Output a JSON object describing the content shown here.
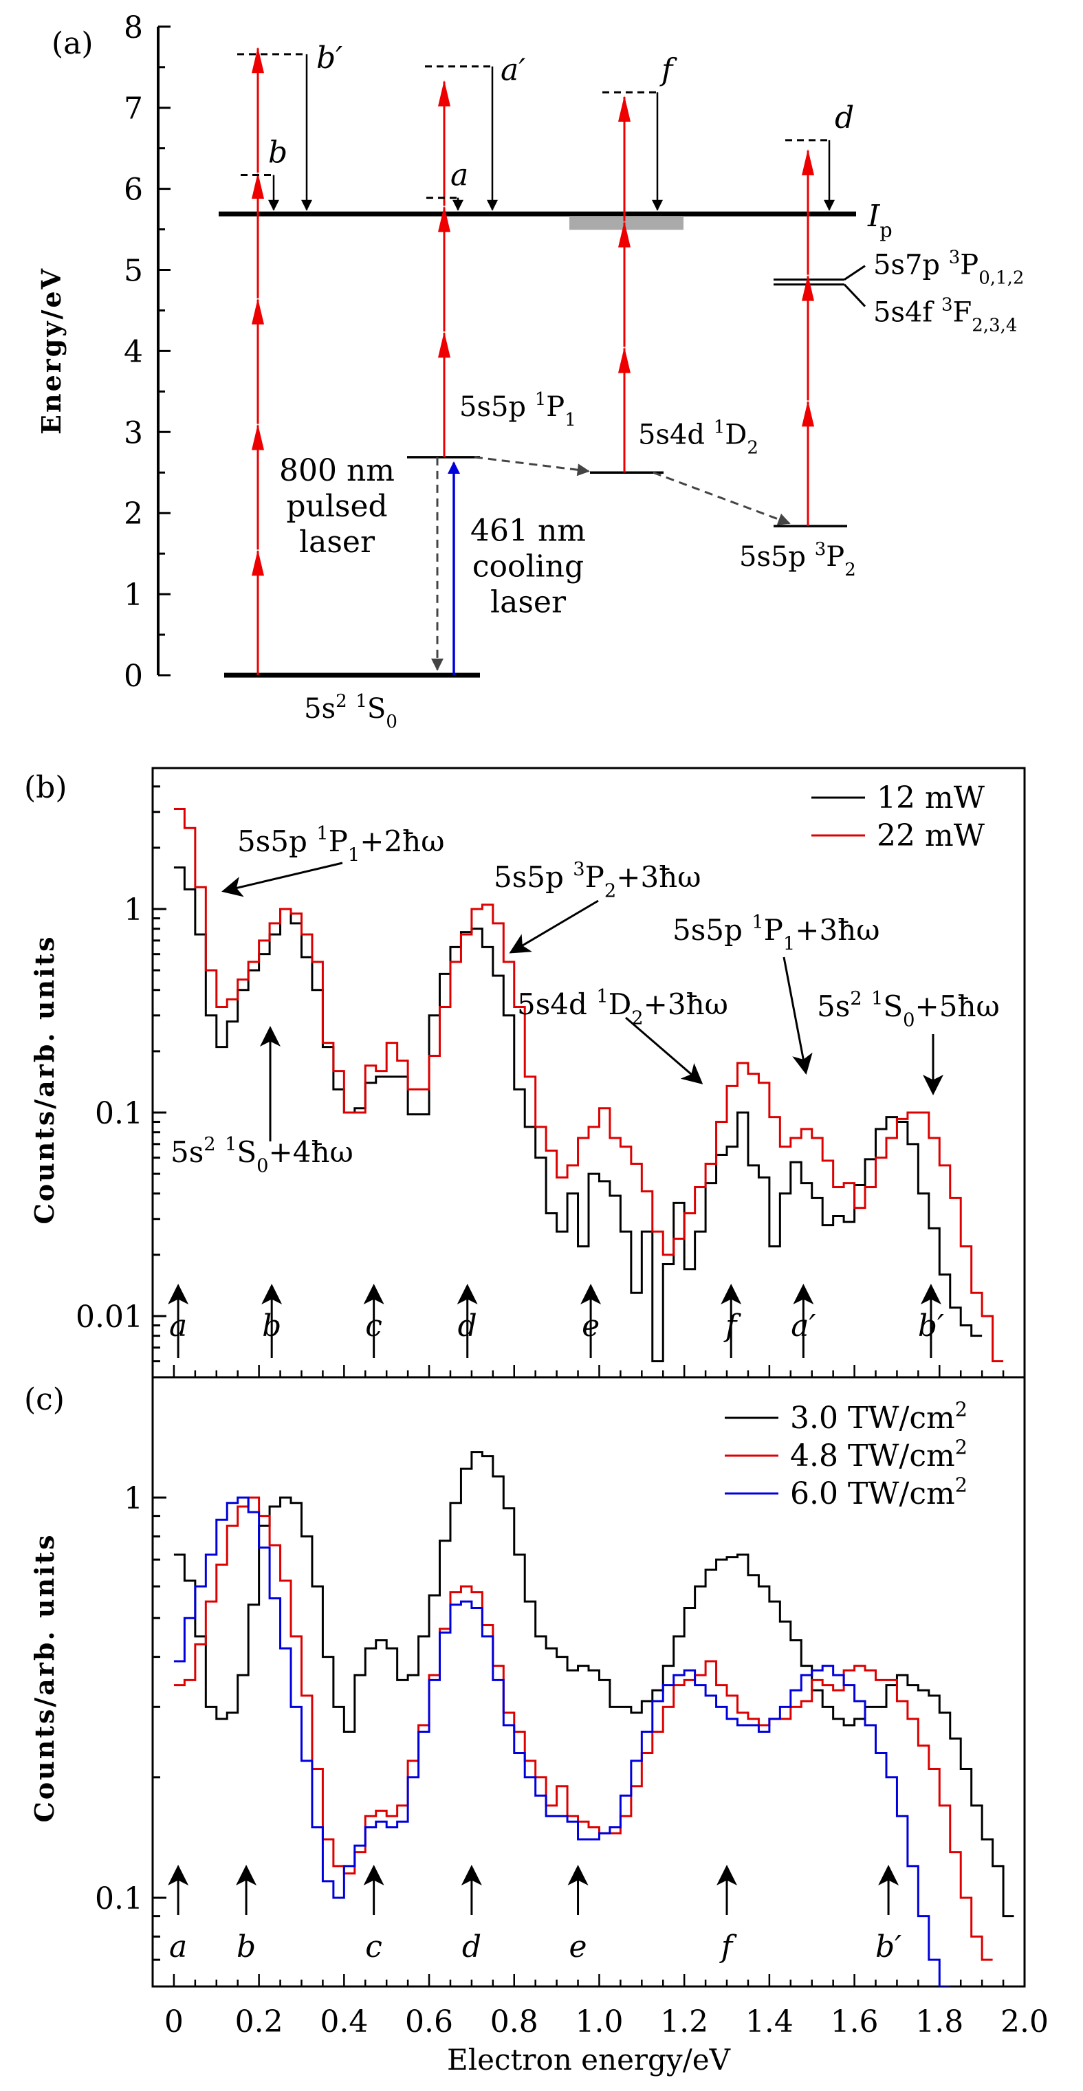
{
  "chart_data": [
    {
      "panel": "(a)",
      "type": "diagram",
      "title": "Energy level scheme",
      "ylabel": "Energy/eV",
      "ylim": [
        0,
        8
      ],
      "yticks": [
        "0",
        "1",
        "2",
        "3",
        "4",
        "5",
        "6",
        "7",
        "8"
      ],
      "ionization_label": "I",
      "ionization_sub": "p",
      "ionization_energy": 5.69,
      "levels": [
        {
          "name": "5s² ¹S₀",
          "label": "5s",
          "sup1": "2",
          "term": "1",
          "L": "S",
          "sub": "0",
          "energy": 0.0
        },
        {
          "name": "5s5p ¹P₁",
          "label": "5s5p",
          "term": "1",
          "L": "P",
          "sub": "1",
          "energy": 2.69
        },
        {
          "name": "5s4d ¹D₂",
          "label": "5s4d",
          "term": "1",
          "L": "D",
          "sub": "2",
          "energy": 2.5
        },
        {
          "name": "5s5p ³P₂",
          "label": "5s5p",
          "term": "3",
          "L": "P",
          "sub": "2",
          "energy": 1.84
        },
        {
          "name": "5s7p ³P₀,₁,₂",
          "label": "5s7p",
          "term": "3",
          "L": "P",
          "sub": "0,1,2",
          "energy": 4.88
        },
        {
          "name": "5s4f ³F₂,₃,₄",
          "label": "5s4f",
          "term": "3",
          "L": "F",
          "sub": "2,3,4",
          "energy": 4.82
        }
      ],
      "photon_energy_eV": 1.55,
      "virtual_levels": [
        {
          "label": "b'",
          "energy": 7.66
        },
        {
          "label": "b",
          "energy": 6.17
        },
        {
          "label": "a'",
          "energy": 7.51
        },
        {
          "label": "a",
          "energy": 5.89
        },
        {
          "label": "f",
          "energy": 7.19
        },
        {
          "label": "d",
          "energy": 6.6
        }
      ],
      "lasers": {
        "pulsed": [
          "800 nm",
          "pulsed",
          "laser"
        ],
        "cooling": [
          "461 nm",
          "cooling",
          "laser"
        ]
      },
      "colors": {
        "photon": "#ee0000",
        "cooling": "#0000dd",
        "decay": "#444444",
        "band": "#aaaaaa"
      }
    },
    {
      "panel": "(b)",
      "type": "line",
      "style": "step histogram",
      "ylabel": "Counts/arb. units",
      "yscale": "log",
      "ylim": [
        0.0055,
        4.5
      ],
      "yticks": [
        "0.01",
        "0.1",
        "1"
      ],
      "xlim": [
        -0.05,
        2.0
      ],
      "legend": "top-right",
      "bin_width": 0.025,
      "x_start": 0.0,
      "series": [
        {
          "name": "12 mW",
          "color": "#000000",
          "values": [
            1.6,
            1.25,
            0.75,
            0.3,
            0.21,
            0.28,
            0.4,
            0.5,
            0.6,
            0.75,
            1.0,
            0.85,
            0.58,
            0.4,
            0.21,
            0.13,
            0.1,
            0.105,
            0.14,
            0.15,
            0.15,
            0.15,
            0.098,
            0.098,
            0.3,
            0.48,
            0.65,
            0.77,
            0.8,
            0.65,
            0.47,
            0.3,
            0.13,
            0.085,
            0.06,
            0.032,
            0.026,
            0.04,
            0.022,
            0.05,
            0.046,
            0.039,
            0.026,
            0.013,
            0.026,
            0.006,
            0.018,
            0.036,
            0.017,
            0.026,
            0.045,
            0.062,
            0.068,
            0.1,
            0.055,
            0.048,
            0.022,
            0.04,
            0.057,
            0.045,
            0.038,
            0.028,
            0.031,
            0.029,
            0.044,
            0.059,
            0.083,
            0.095,
            0.09,
            0.07,
            0.04,
            0.027,
            0.016,
            0.011,
            0.009,
            0.008
          ]
        },
        {
          "name": "22 mW",
          "color": "#dd0000",
          "values": [
            3.1,
            2.5,
            1.28,
            0.5,
            0.33,
            0.36,
            0.45,
            0.55,
            0.7,
            0.85,
            1.0,
            0.95,
            0.75,
            0.55,
            0.22,
            0.16,
            0.1,
            0.1,
            0.17,
            0.16,
            0.22,
            0.18,
            0.13,
            0.13,
            0.19,
            0.33,
            0.55,
            0.75,
            1.0,
            1.05,
            0.85,
            0.55,
            0.33,
            0.15,
            0.085,
            0.065,
            0.048,
            0.055,
            0.075,
            0.085,
            0.105,
            0.075,
            0.068,
            0.056,
            0.041,
            0.026,
            0.02,
            0.024,
            0.032,
            0.043,
            0.056,
            0.09,
            0.135,
            0.175,
            0.155,
            0.14,
            0.095,
            0.068,
            0.075,
            0.083,
            0.075,
            0.058,
            0.043,
            0.045,
            0.034,
            0.043,
            0.06,
            0.075,
            0.093,
            0.1,
            0.1,
            0.075,
            0.055,
            0.038,
            0.022,
            0.013,
            0.01,
            0.006
          ]
        }
      ],
      "annotations": [
        {
          "text": "5s5p ¹P₁+2ħω",
          "base": "5s5p ",
          "sup": "1",
          "L": "P",
          "sub": "1",
          "tail": "+2ħω"
        },
        {
          "text": "5s5p ³P₂+3ħω",
          "base": "5s5p ",
          "sup": "3",
          "L": "P",
          "sub": "2",
          "tail": "+3ħω"
        },
        {
          "text": "5s2 ¹S₀+4ħω",
          "base": "5s",
          "sup0": "2",
          "sup": "1",
          "L": "S",
          "sub": "0",
          "tail": "+4ħω"
        },
        {
          "text": "5s4d ¹D₂+3ħω",
          "base": "5s4d ",
          "sup": "1",
          "L": "D",
          "sub": "2",
          "tail": "+3ħω"
        },
        {
          "text": "5s5p ¹P₁+3ħω",
          "base": "5s5p ",
          "sup": "1",
          "L": "P",
          "sub": "1",
          "tail": "+3ħω"
        },
        {
          "text": "5s2 ¹S₀+5ħω",
          "base": "5s",
          "sup0": "2",
          "sup": "1",
          "L": "S",
          "sub": "0",
          "tail": "+5ħω"
        }
      ],
      "peak_markers": [
        {
          "label": "a",
          "x": 0.01
        },
        {
          "label": "b",
          "x": 0.23
        },
        {
          "label": "c",
          "x": 0.47
        },
        {
          "label": "d",
          "x": 0.69
        },
        {
          "label": "e",
          "x": 0.98
        },
        {
          "label": "f",
          "x": 1.31
        },
        {
          "label": "a'",
          "x": 1.48
        },
        {
          "label": "b'",
          "x": 1.78
        }
      ]
    },
    {
      "panel": "(c)",
      "type": "line",
      "style": "step histogram",
      "ylabel": "Counts/arb. units",
      "xlabel": "Electron energy/eV",
      "yscale": "log",
      "ylim": [
        0.065,
        1.65
      ],
      "yticks": [
        "0.1",
        "1"
      ],
      "xlim": [
        -0.05,
        2.0
      ],
      "xticks": [
        "0",
        "0.2",
        "0.4",
        "0.6",
        "0.8",
        "1.0",
        "1.2",
        "1.4",
        "1.6",
        "1.8",
        "2.0"
      ],
      "legend": "top-right",
      "bin_width": 0.025,
      "x_start": 0.0,
      "series": [
        {
          "name": "3.0 TW/cm²",
          "label": "3.0 TW/cm",
          "sup": "2",
          "color": "#000000",
          "values": [
            0.72,
            0.62,
            0.45,
            0.3,
            0.28,
            0.29,
            0.36,
            0.54,
            0.85,
            0.95,
            1.0,
            0.97,
            0.8,
            0.6,
            0.4,
            0.3,
            0.26,
            0.36,
            0.42,
            0.44,
            0.42,
            0.35,
            0.36,
            0.45,
            0.57,
            0.78,
            0.97,
            1.18,
            1.3,
            1.27,
            1.13,
            0.94,
            0.72,
            0.55,
            0.45,
            0.42,
            0.4,
            0.37,
            0.38,
            0.37,
            0.35,
            0.3,
            0.3,
            0.29,
            0.31,
            0.33,
            0.38,
            0.45,
            0.53,
            0.6,
            0.66,
            0.7,
            0.71,
            0.72,
            0.64,
            0.6,
            0.55,
            0.49,
            0.44,
            0.38,
            0.33,
            0.3,
            0.28,
            0.27,
            0.28,
            0.3,
            0.3,
            0.34,
            0.36,
            0.34,
            0.33,
            0.32,
            0.29,
            0.25,
            0.21,
            0.17,
            0.14,
            0.12,
            0.09
          ]
        },
        {
          "name": "4.8 TW/cm²",
          "label": "4.8 TW/cm",
          "sup": "2",
          "color": "#dd0000",
          "values": [
            0.34,
            0.35,
            0.43,
            0.55,
            0.68,
            0.85,
            0.95,
            1.0,
            0.9,
            0.76,
            0.62,
            0.45,
            0.32,
            0.21,
            0.14,
            0.12,
            0.115,
            0.13,
            0.16,
            0.165,
            0.16,
            0.17,
            0.22,
            0.27,
            0.36,
            0.47,
            0.58,
            0.6,
            0.58,
            0.48,
            0.38,
            0.29,
            0.26,
            0.22,
            0.2,
            0.17,
            0.19,
            0.16,
            0.155,
            0.15,
            0.145,
            0.145,
            0.16,
            0.19,
            0.23,
            0.26,
            0.3,
            0.34,
            0.35,
            0.36,
            0.39,
            0.34,
            0.32,
            0.29,
            0.28,
            0.27,
            0.28,
            0.28,
            0.3,
            0.31,
            0.35,
            0.34,
            0.33,
            0.37,
            0.38,
            0.37,
            0.35,
            0.35,
            0.31,
            0.28,
            0.24,
            0.21,
            0.17,
            0.13,
            0.1,
            0.08,
            0.07
          ]
        },
        {
          "name": "6.0 TW/cm²",
          "label": "6.0 TW/cm",
          "sup": "2",
          "color": "#0000dd",
          "values": [
            0.39,
            0.5,
            0.6,
            0.72,
            0.88,
            0.97,
            1.0,
            0.92,
            0.75,
            0.56,
            0.42,
            0.3,
            0.22,
            0.15,
            0.11,
            0.1,
            0.12,
            0.135,
            0.15,
            0.155,
            0.15,
            0.155,
            0.2,
            0.26,
            0.35,
            0.46,
            0.54,
            0.55,
            0.53,
            0.45,
            0.35,
            0.27,
            0.23,
            0.2,
            0.18,
            0.16,
            0.16,
            0.155,
            0.14,
            0.14,
            0.145,
            0.15,
            0.18,
            0.22,
            0.26,
            0.31,
            0.34,
            0.36,
            0.37,
            0.34,
            0.32,
            0.3,
            0.28,
            0.27,
            0.27,
            0.26,
            0.28,
            0.3,
            0.33,
            0.36,
            0.37,
            0.38,
            0.36,
            0.34,
            0.31,
            0.27,
            0.23,
            0.2,
            0.16,
            0.12,
            0.09,
            0.07,
            0.06
          ]
        }
      ],
      "peak_markers": [
        {
          "label": "a",
          "x": 0.01
        },
        {
          "label": "b",
          "x": 0.17
        },
        {
          "label": "c",
          "x": 0.47
        },
        {
          "label": "d",
          "x": 0.7
        },
        {
          "label": "e",
          "x": 0.95
        },
        {
          "label": "f",
          "x": 1.3
        },
        {
          "label": "b'",
          "x": 1.68
        }
      ]
    }
  ]
}
